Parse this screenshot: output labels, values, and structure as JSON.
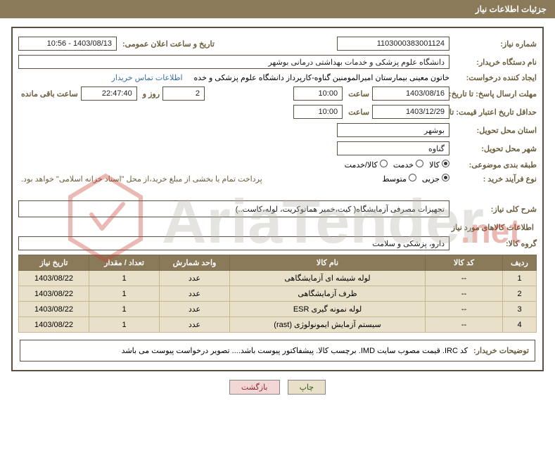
{
  "header": {
    "title": "جزئیات اطلاعات نیاز"
  },
  "fields": {
    "need_no_label": "شماره نیاز:",
    "need_no": "1103000383001124",
    "announce_date_label": "تاریخ و ساعت اعلان عمومی:",
    "announce_date": "1403/08/13 - 10:56",
    "buyer_org_label": "نام دستگاه خریدار:",
    "buyer_org": "دانشگاه علوم پزشکی و خدمات بهداشتی درمانی بوشهر",
    "requester_label": "ایجاد کننده درخواست:",
    "requester": "خاتون معینی بیمارستان امیرالمومنین گناوه-کارپرداز دانشگاه علوم پزشکی و خده",
    "contact_link": "اطلاعات تماس خریدار",
    "reply_deadline_label": "مهلت ارسال پاسخ: تا تاریخ:",
    "reply_date": "1403/08/16",
    "time_label": "ساعت",
    "reply_time": "10:00",
    "days": "2",
    "days_label": "روز و",
    "countdown": "22:47:40",
    "remain_label": "ساعت باقی مانده",
    "price_valid_label": "حداقل تاریخ اعتبار قیمت: تا تاریخ:",
    "price_valid_date": "1403/12/29",
    "price_valid_time": "10:00",
    "province_label": "استان محل تحویل:",
    "province": "بوشهر",
    "city_label": "شهر محل تحویل:",
    "city": "گناوه",
    "category_label": "طبقه بندی موضوعی:",
    "radio_kala": "کالا",
    "radio_khedmat": "خدمت",
    "radio_kalakhedmat": "کالا/خدمت",
    "purchase_type_label": "نوع فرآیند خرید :",
    "radio_partial": "جزیی",
    "radio_medium": "متوسط",
    "purchase_note": "پرداخت تمام یا بخشی از مبلغ خرید،از محل \"اسناد خزانه اسلامی\" خواهد بود.",
    "desc_label": "شرح کلی نیاز:",
    "desc": "تجهیزات مصرفی آزمایشگاه( کیت،خمیر هماتوکریت، لوله،کاست..)",
    "goods_section": "اطلاعات کالاهای مورد نیاز",
    "group_label": "گروه کالا:",
    "group": "دارو، پزشکی و سلامت"
  },
  "table": {
    "headers": {
      "row": "ردیف",
      "code": "کد کالا",
      "name": "نام کالا",
      "unit": "واحد شمارش",
      "qty": "تعداد / مقدار",
      "date": "تاریخ نیاز"
    },
    "rows": [
      {
        "row": "1",
        "code": "--",
        "name": "لوله شیشه ای آزمایشگاهی",
        "unit": "عدد",
        "qty": "1",
        "date": "1403/08/22"
      },
      {
        "row": "2",
        "code": "--",
        "name": "ظرف آزمایشگاهی",
        "unit": "عدد",
        "qty": "1",
        "date": "1403/08/22"
      },
      {
        "row": "3",
        "code": "--",
        "name": "لوله نمونه گیری ESR",
        "unit": "عدد",
        "qty": "1",
        "date": "1403/08/22"
      },
      {
        "row": "4",
        "code": "--",
        "name": "سیستم آزمایش ایمونولوژی (rast)",
        "unit": "عدد",
        "qty": "1",
        "date": "1403/08/22"
      }
    ]
  },
  "buyer_note": {
    "label": "توضیحات خریدار:",
    "text": "کد IRC. قیمت مصوب سایت IMD.  برچسب کالا.  پیشفاکتور پیوست باشد.... تصویر درخواست پیوست می باشد"
  },
  "buttons": {
    "print": "چاپ",
    "back": "بازگشت"
  },
  "styles": {
    "header_bg": "#8a7a5a",
    "border_color": "#5a5040",
    "label_color": "#6b5e3e",
    "row_bg": "#e8e0c8",
    "row_border": "#c8b890",
    "link_color": "#3a6ea5",
    "btn_print_bg": "#e8e0c8",
    "btn_back_bg": "#f2d6d6",
    "watermark_stroke": "#c43a2a",
    "watermark_text": "#b9b3a8"
  }
}
